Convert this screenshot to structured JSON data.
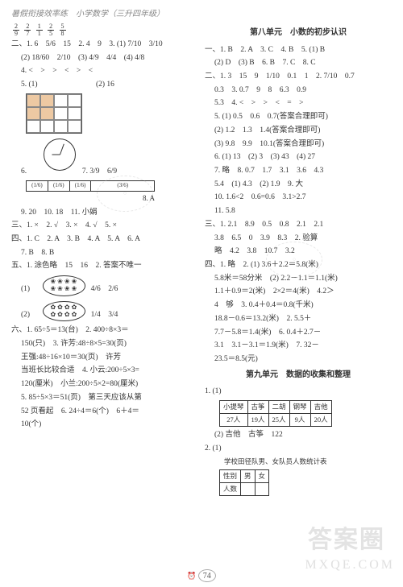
{
  "header": "暑假衔接效率练　小学数学（三升四年级）",
  "left": {
    "fr_row": [
      [
        "2",
        "9"
      ],
      [
        "2",
        "7"
      ],
      [
        "1",
        "1"
      ],
      [
        "2",
        "5"
      ],
      [
        "5",
        "8"
      ]
    ],
    "sec2_l1": "二、1. 6　5/6　15　2. 4　9　3. (1) 7/10　3/10",
    "sec2_l2": "(2) 18/60　2/10　(3) 4/9　4/4　(4) 4/8",
    "sec2_l3": "4. <　>　>　<　>　<",
    "sec2_l4a": "5. (1)",
    "sec2_l4b": "(2) 16",
    "sec2_l5a": "6.",
    "sec2_l5b": "7. 3/9　6/9",
    "bar_vals": [
      "(1/6)",
      "(1/6)",
      "(1/6)"
    ],
    "bar_half": "(3/6)",
    "bar_label": "8. A",
    "sec2_l6": "9. 20　10. 18　11. 小娟",
    "sec3": "三、1. ×　2. √　3. ×　4. √　5. ×",
    "sec4_l1": "四、1. C　2. A　3. B　4. A　5. A　6. A",
    "sec4_l2": "7. B　8. B",
    "sec5_l1": "五、1. 涂色略　15　16　2. 答案不唯一",
    "ov1_label": "(1)",
    "ov1_side": "4/6　2/6",
    "ov2_label": "(2)",
    "ov2_side": "1/4　3/4",
    "sec6_l1": "六、1. 65÷5＝13(台)　2. 400÷8×3＝",
    "sec6_l2": "150(只)　3. 许芳:48÷8×5=30(页)",
    "sec6_l3": "王强:48÷16×10＝30(页)　许芳",
    "sec6_l4": "当班长比较合适　4. 小云:200÷5×3=",
    "sec6_l5": "120(厘米)　小兰:200÷5×2=80(厘米)",
    "sec6_l6": "5. 85÷5×3＝51(页)　第三天应该从第",
    "sec6_l7": "52 页看起　6. 24÷4＝6(个)　6＋4＝",
    "sec6_l8": "10(个)"
  },
  "right": {
    "unit8": "第八单元　小数的初步认识",
    "u8_s1_l1": "一、1. B　2. A　3. C　4. B　5. (1) B",
    "u8_s1_l2": "(2) D　(3) B　6. B　7. C　8. C",
    "u8_s2_l1": "二、1. 3　15　9　1/10　0.1　1　2. 7/10　0.7",
    "u8_s2_l2": "0.3　3. 0.7　9　8　6.3　0.9",
    "u8_s2_l3": "5.3　4. <　>　>　<　=　>",
    "u8_s2_l4": "5. (1) 0.5　0.6　0.7(答案合理即可)",
    "u8_s2_l5": "(2) 1.2　1.3　1.4(答案合理即可)",
    "u8_s2_l6": "(3) 9.8　9.9　10.1(答案合理即可)",
    "u8_s2_l7": "6. (1) 13　(2) 3　(3) 43　(4) 27",
    "u8_s2_l8": "7. 略　8. 0.7　1.7　3.1　3.6　4.3",
    "u8_s2_l9": "5.4　(1) 4.3　(2) 1.9　9. 大",
    "u8_s2_l10": "10. 1.6<2　0.6=0.6　3.1>2.7",
    "u8_s2_l11": "11. 5.8",
    "u8_s3_l1": "三、1. 2.1　8.9　0.5　0.8　2.1　2.1",
    "u8_s3_l2": "3.8　6.5　0　3.9　8.3　2. 验算",
    "u8_s3_l3": "略　4.2　3.8　10.7　3.2",
    "u8_s4_l1": "四、1. 略　2. (1) 3.6＋2.2＝5.8(米)",
    "u8_s4_l2": "5.8米＝58分米　(2) 2.2－1.1＝1.1(米)",
    "u8_s4_l3": "1.1＋0.9＝2(米)　2×2＝4(米)　4.2＞",
    "u8_s4_l4": "4　够　3. 0.4＋0.4＝0.8(千米)",
    "u8_s4_l5": "18.8－0.6＝13.2(米)　2. 5.5＋",
    "u8_s4_l6": "7.7－5.8＝1.4(米)　6. 0.4＋2.7－",
    "u8_s4_l7": "3.1　3.1－3.1＝1.9(米)　7. 32－",
    "u8_s4_l8": "23.5＝8.5(元)",
    "unit9": "第九单元　数据的收集和整理",
    "u9_l1": "1. (1)",
    "table1": {
      "head": [
        "小提琴",
        "古筝",
        "二胡",
        "钢琴",
        "吉他"
      ],
      "row": [
        "27人",
        "19人",
        "25人",
        "9人",
        "20人"
      ]
    },
    "u9_l2": "(2) 吉他　古筝　122",
    "u9_l3": "2. (1)",
    "table2": {
      "title": "学校田径队男、女队员人数统计表",
      "head": [
        "性别",
        "男",
        "女"
      ],
      "row": [
        "人数",
        "",
        ""
      ]
    }
  },
  "footer_page": "74",
  "wm1": "答案圈",
  "wm2": "MXQE.COM"
}
